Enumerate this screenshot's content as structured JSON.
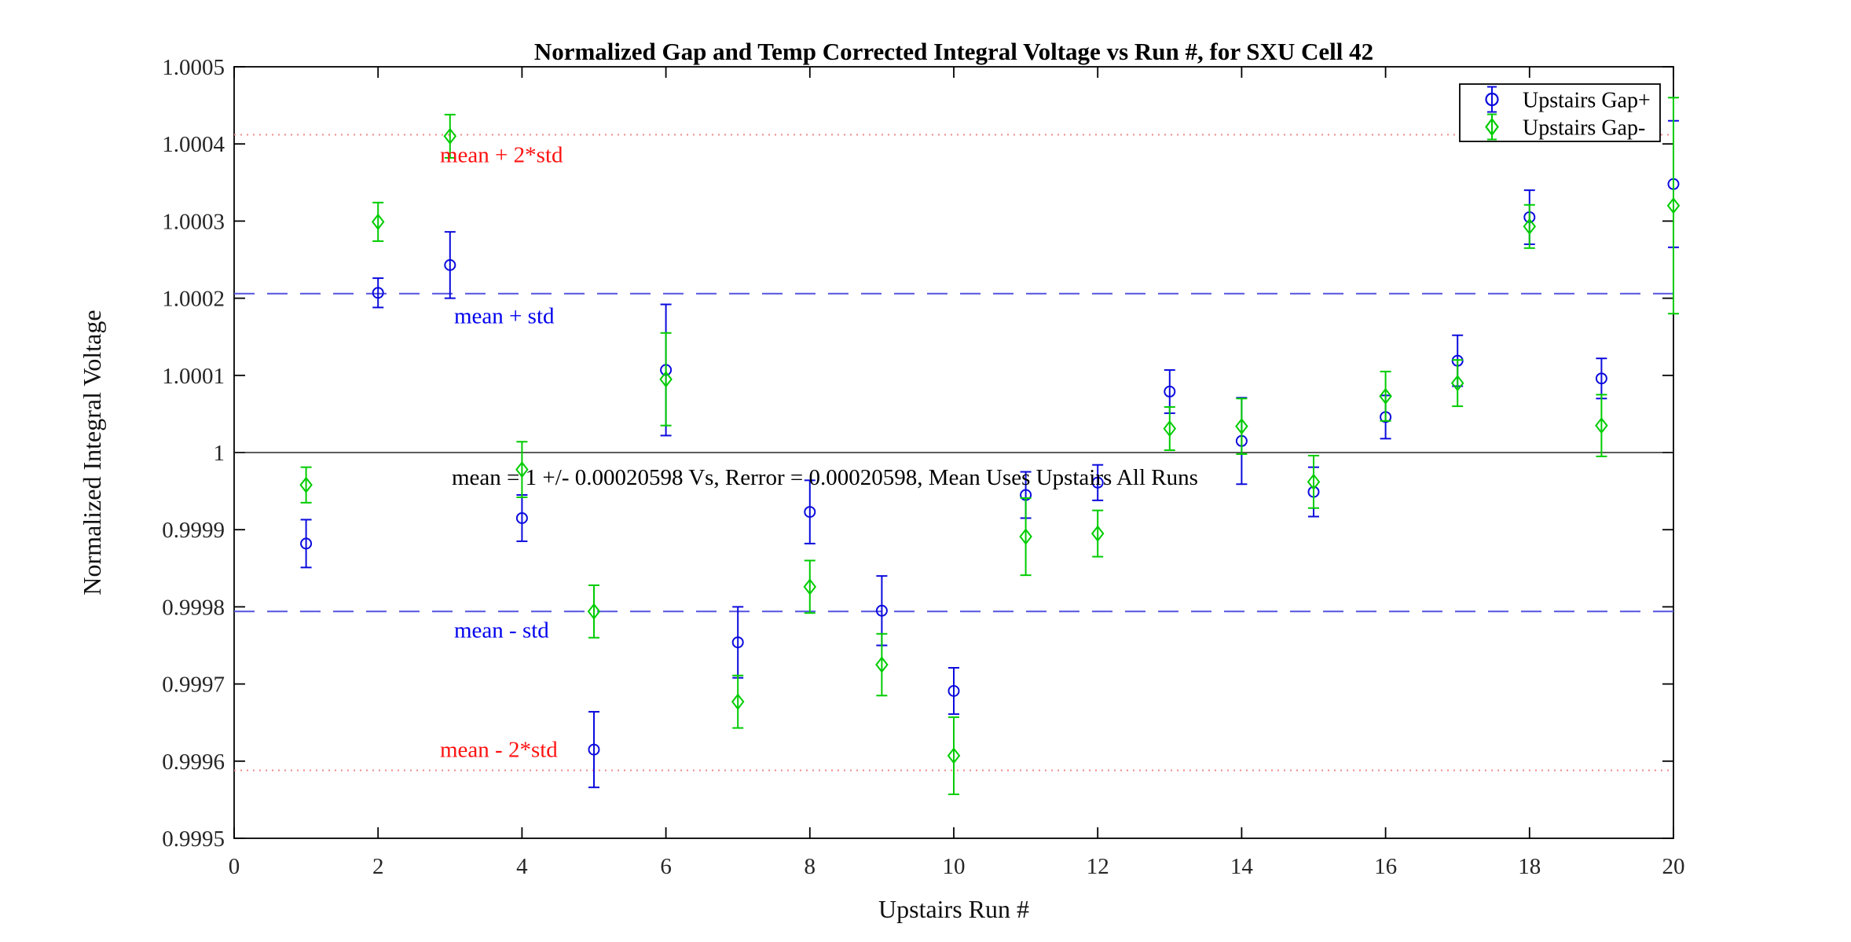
{
  "chart_data": {
    "type": "scatter",
    "title": "Normalized Gap and Temp Corrected Integral Voltage vs Run #, for SXU Cell 42",
    "xlabel": "Upstairs Run #",
    "ylabel": "Normalized Integral Voltage",
    "xlim": [
      0,
      20
    ],
    "ylim": [
      0.9995,
      1.0005
    ],
    "grid": false,
    "legend_position": "top-right",
    "x_ticks": [
      "0",
      "2",
      "4",
      "6",
      "8",
      "10",
      "12",
      "14",
      "16",
      "18",
      "20"
    ],
    "y_ticks": [
      "0.9995",
      "0.9996",
      "0.9997",
      "0.9998",
      "0.9999",
      "1",
      "1.0001",
      "1.0002",
      "1.0003",
      "1.0004",
      "1.0005"
    ],
    "x": [
      1,
      2,
      3,
      4,
      5,
      6,
      7,
      8,
      9,
      10,
      11,
      12,
      13,
      14,
      15,
      16,
      17,
      18,
      19,
      20
    ],
    "series": [
      {
        "name": "Upstairs Gap+",
        "marker": "circle",
        "color": "#0b0bdd",
        "values": [
          0.999882,
          1.000207,
          1.000243,
          0.999915,
          0.999615,
          1.000107,
          0.999754,
          0.999923,
          0.999795,
          0.999691,
          0.999945,
          0.999961,
          1.000079,
          1.000015,
          0.999949,
          1.000046,
          1.000119,
          1.000305,
          1.000096,
          1.000348
        ],
        "errors": [
          3.1e-05,
          1.9e-05,
          4.3e-05,
          3e-05,
          4.9e-05,
          8.5e-05,
          4.6e-05,
          4.1e-05,
          4.5e-05,
          3e-05,
          3e-05,
          2.3e-05,
          2.8e-05,
          5.6e-05,
          3.2e-05,
          2.8e-05,
          3.3e-05,
          3.5e-05,
          2.6e-05,
          8.2e-05
        ]
      },
      {
        "name": "Upstairs Gap-",
        "marker": "diamond",
        "color": "#00cc00",
        "values": [
          0.999958,
          1.000299,
          1.00041,
          0.999978,
          0.999794,
          1.000095,
          0.999677,
          0.999826,
          0.999725,
          0.999607,
          0.999891,
          0.999895,
          1.000031,
          1.000034,
          0.999962,
          1.000073,
          1.00009,
          1.000293,
          1.000035,
          1.00032
        ],
        "errors": [
          2.3e-05,
          2.5e-05,
          2.8e-05,
          3.6e-05,
          3.4e-05,
          6e-05,
          3.4e-05,
          3.4e-05,
          4e-05,
          5e-05,
          5e-05,
          3e-05,
          2.8e-05,
          3.6e-05,
          3.4e-05,
          3.2e-05,
          3e-05,
          2.8e-05,
          4e-05,
          0.00014
        ]
      }
    ],
    "mean": 1,
    "std": 0.00020598,
    "mean_annotation": "mean = 1 +/- 0.00020598 Vs, Rerror = 0.00020598, Mean Uses Upstairs All Runs",
    "ref_lines": [
      {
        "label": "mean + 2*std",
        "value": 1.00041196,
        "style": "dotted",
        "line_color": "#f08888",
        "label_color": "#ff1111"
      },
      {
        "label": "mean + std",
        "value": 1.00020598,
        "style": "dashed",
        "line_color": "#5353e0",
        "label_color": "#0000ee"
      },
      {
        "label": "mean",
        "value": 1.0,
        "style": "solid",
        "line_color": "#262626",
        "label_color": "#000000"
      },
      {
        "label": "mean - std",
        "value": 0.99979402,
        "style": "dashed",
        "line_color": "#5353e0",
        "label_color": "#0000ee"
      },
      {
        "label": "mean - 2*std",
        "value": 0.99958804,
        "style": "dotted",
        "line_color": "#f08888",
        "label_color": "#ff1111"
      }
    ],
    "legend": {
      "entries": [
        "Upstairs Gap+",
        "Upstairs Gap-"
      ]
    }
  }
}
